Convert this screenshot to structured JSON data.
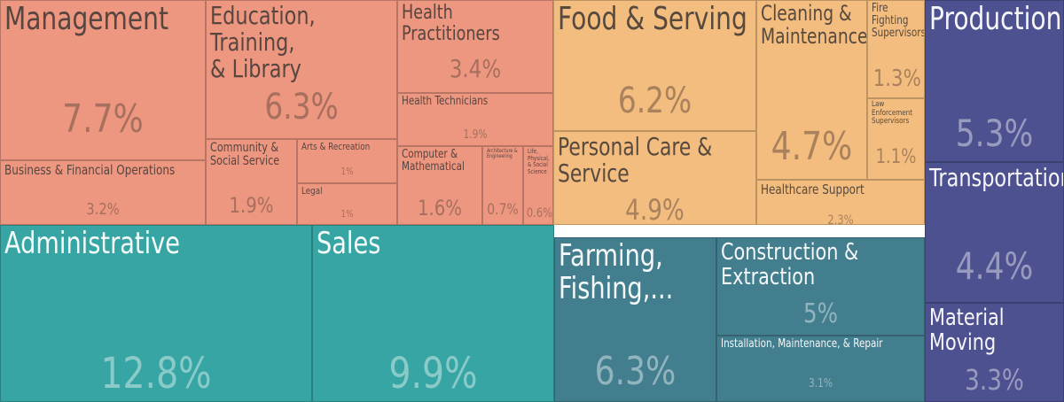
{
  "chart_data": {
    "type": "treemap",
    "title": "",
    "colors": {
      "salmon": "#ED9680",
      "orange": "#F2BD7E",
      "teal": "#36A5A3",
      "slate": "#437E8F",
      "purple": "#4E5190"
    },
    "items": [
      {
        "label": "Management",
        "value": "7.7%",
        "group": "salmon"
      },
      {
        "label": "Business & Financial Operations",
        "value": "3.2%",
        "group": "salmon"
      },
      {
        "label": "Education, Training,\n& Library",
        "value": "6.3%",
        "group": "salmon"
      },
      {
        "label": "Community &\nSocial Service",
        "value": "1.9%",
        "group": "salmon"
      },
      {
        "label": "Arts & Recreation",
        "value": "1%",
        "group": "salmon"
      },
      {
        "label": "Legal",
        "value": "1%",
        "group": "salmon"
      },
      {
        "label": "Health Practitioners",
        "value": "3.4%",
        "group": "salmon"
      },
      {
        "label": "Health Technicians",
        "value": "1.9%",
        "group": "salmon"
      },
      {
        "label": "Computer &\nMathematical",
        "value": "1.6%",
        "group": "salmon"
      },
      {
        "label": "Architecture &\nEngineering",
        "value": "0.7%",
        "group": "salmon"
      },
      {
        "label": "Life,\nPhysical,\n& Social\nScience",
        "value": "0.6%",
        "group": "salmon"
      },
      {
        "label": "Food & Serving",
        "value": "6.2%",
        "group": "orange"
      },
      {
        "label": "Personal Care & Service",
        "value": "4.9%",
        "group": "orange"
      },
      {
        "label": "Cleaning &\nMaintenance",
        "value": "4.7%",
        "group": "orange"
      },
      {
        "label": "Fire Fighting\nSupervisors",
        "value": "1.3%",
        "group": "orange"
      },
      {
        "label": "Law\nEnforcement\nSupervisors",
        "value": "1.1%",
        "group": "orange"
      },
      {
        "label": "Healthcare Support",
        "value": "2.3%",
        "group": "orange"
      },
      {
        "label": "Administrative",
        "value": "12.8%",
        "group": "teal"
      },
      {
        "label": "Sales",
        "value": "9.9%",
        "group": "teal"
      },
      {
        "label": "Farming,\nFishing,...",
        "value": "6.3%",
        "group": "slate"
      },
      {
        "label": "Construction & Extraction",
        "value": "5%",
        "group": "slate"
      },
      {
        "label": "Installation, Maintenance, & Repair",
        "value": "3.1%",
        "group": "slate"
      },
      {
        "label": "Production",
        "value": "5.3%",
        "group": "purple"
      },
      {
        "label": "Transportation",
        "value": "4.4%",
        "group": "purple"
      },
      {
        "label": "Material Moving",
        "value": "3.3%",
        "group": "purple"
      }
    ]
  }
}
